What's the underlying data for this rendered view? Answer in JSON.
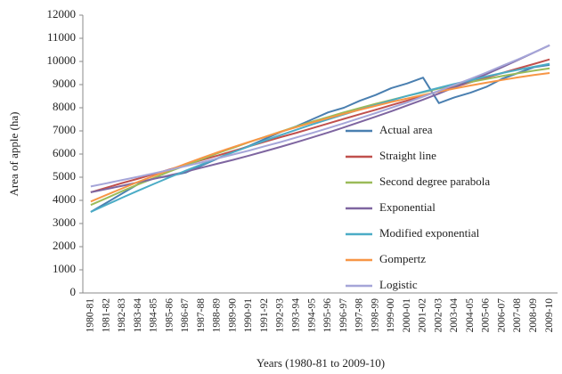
{
  "chart_data": {
    "type": "line",
    "x_label": "Years (1980-81 to 2009-10)",
    "y_label": "Area of apple (ha)",
    "categories": [
      "1980-81",
      "1981-82",
      "1982-83",
      "1983-84",
      "1984-85",
      "1985-86",
      "1986-87",
      "1987-88",
      "1988-89",
      "1989-90",
      "1990-91",
      "1991-92",
      "1992-93",
      "1993-94",
      "1994-95",
      "1995-96",
      "1996-97",
      "1997-98",
      "1998-99",
      "1999-00",
      "2000-01",
      "2001-02",
      "2002-03",
      "2003-04",
      "2004-05",
      "2005-06",
      "2006-07",
      "2007-08",
      "2008-09",
      "2009-10"
    ],
    "ylim": [
      0,
      12000
    ],
    "yticks": [
      0,
      1000,
      2000,
      3000,
      4000,
      5000,
      6000,
      7000,
      8000,
      9000,
      10000,
      11000,
      12000
    ],
    "grid": false,
    "legend": "right",
    "series": [
      {
        "name": "Actual area",
        "color": "#4a7fb0",
        "values": [
          3500,
          3900,
          4300,
          4700,
          4950,
          5050,
          5200,
          5500,
          5800,
          6100,
          6350,
          6650,
          6950,
          7200,
          7500,
          7800,
          8000,
          8300,
          8550,
          8850,
          9050,
          9300,
          8200,
          8450,
          8650,
          8900,
          9250,
          9500,
          9750,
          9850
        ]
      },
      {
        "name": "Straight line",
        "color": "#c0504d",
        "values": [
          4350,
          4550,
          4750,
          4940,
          5140,
          5340,
          5540,
          5740,
          5930,
          6130,
          6330,
          6530,
          6730,
          6920,
          7120,
          7320,
          7520,
          7720,
          7910,
          8110,
          8310,
          8510,
          8710,
          8900,
          9100,
          9300,
          9500,
          9700,
          9890,
          10090
        ]
      },
      {
        "name": "Second degree parabola",
        "color": "#9bbb59",
        "values": [
          3800,
          4100,
          4400,
          4690,
          4970,
          5250,
          5510,
          5770,
          6030,
          6270,
          6510,
          6740,
          6970,
          7190,
          7400,
          7600,
          7800,
          7990,
          8170,
          8340,
          8510,
          8670,
          8830,
          8970,
          9110,
          9240,
          9370,
          9490,
          9600,
          9700
        ]
      },
      {
        "name": "Exponential",
        "color": "#7e65a0",
        "values": [
          4350,
          4490,
          4630,
          4780,
          4930,
          5080,
          5240,
          5410,
          5580,
          5750,
          5930,
          6120,
          6310,
          6510,
          6720,
          6930,
          7150,
          7380,
          7610,
          7850,
          8100,
          8350,
          8610,
          8890,
          9170,
          9450,
          9750,
          10060,
          10380,
          10700
        ]
      },
      {
        "name": "Modified exponential",
        "color": "#4bacc6",
        "values": [
          3500,
          3810,
          4120,
          4420,
          4710,
          5000,
          5280,
          5550,
          5820,
          6080,
          6330,
          6580,
          6820,
          7050,
          7280,
          7500,
          7710,
          7920,
          8120,
          8320,
          8510,
          8690,
          8860,
          9030,
          9190,
          9350,
          9500,
          9640,
          9770,
          9900
        ]
      },
      {
        "name": "Gompertz",
        "color": "#f79646",
        "values": [
          3950,
          4240,
          4520,
          4800,
          5060,
          5320,
          5580,
          5830,
          6070,
          6300,
          6520,
          6740,
          6960,
          7160,
          7360,
          7550,
          7740,
          7910,
          8080,
          8250,
          8400,
          8550,
          8700,
          8830,
          8960,
          9080,
          9200,
          9310,
          9410,
          9500
        ]
      },
      {
        "name": "Logistic",
        "color": "#a5a5d8",
        "values": [
          4600,
          4740,
          4880,
          5020,
          5170,
          5320,
          5480,
          5640,
          5810,
          5980,
          6150,
          6340,
          6520,
          6720,
          6910,
          7120,
          7330,
          7550,
          7770,
          8000,
          8230,
          8480,
          8730,
          8990,
          9250,
          9520,
          9810,
          10090,
          10390,
          10700
        ]
      }
    ]
  }
}
